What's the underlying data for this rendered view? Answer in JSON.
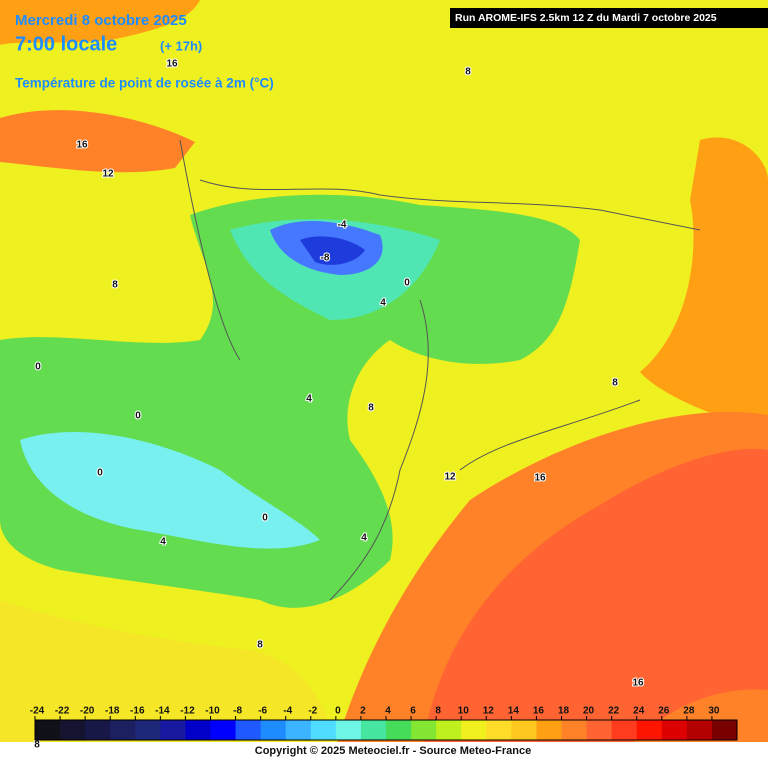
{
  "header": {
    "date": "Mercredi 8 octobre 2025",
    "time": "7:00 locale",
    "lead": "(+ 17h)",
    "title": "Température de point de rosée à 2m (°C)",
    "run": "Run AROME-IFS 2.5km 12 Z du Mardi 7 octobre 2025"
  },
  "contour_labels": [
    16,
    8,
    16,
    12,
    8,
    -4,
    -8,
    0,
    4,
    0,
    4,
    8,
    0,
    8,
    0,
    12,
    16,
    0,
    4,
    4,
    8,
    16,
    8
  ],
  "legend": {
    "values": [
      -24,
      -22,
      -20,
      -18,
      -16,
      -14,
      -12,
      -10,
      -8,
      -6,
      -4,
      -2,
      0,
      2,
      4,
      6,
      8,
      10,
      12,
      14,
      16,
      18,
      20,
      22,
      24,
      26,
      28,
      30
    ],
    "colors": [
      "#101018",
      "#141430",
      "#181848",
      "#1c2060",
      "#1e2878",
      "#1818a0",
      "#0000c8",
      "#0000ff",
      "#1e5aff",
      "#1e8cff",
      "#3cb4ff",
      "#50dcff",
      "#6ef5e6",
      "#46e6a0",
      "#46dc5a",
      "#82e632",
      "#bef01e",
      "#f0f01e",
      "#ffdc28",
      "#ffc81e",
      "#ffa014",
      "#ff8228",
      "#ff6432",
      "#ff3c1e",
      "#ff1400",
      "#dc0000",
      "#b40000",
      "#780000"
    ]
  },
  "footer": "Copyright © 2025 Meteociel.fr - Source Meteo-France"
}
